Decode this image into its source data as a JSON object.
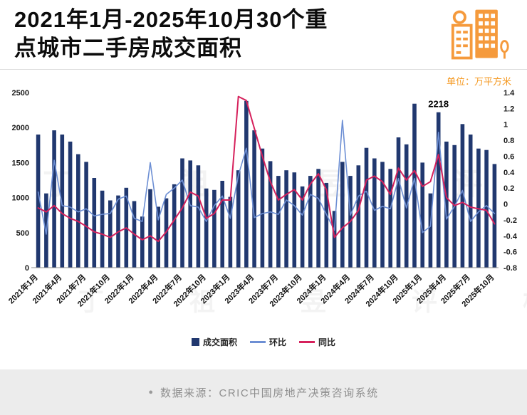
{
  "header": {
    "title": "2021年1月-2025年10月30个重\n点城市二手房成交面积",
    "unit_label": "单位：万平方米"
  },
  "chart_data": {
    "type": "bar",
    "title": "2021年1月-2025年10月30个重点城市二手房成交面积",
    "ylabel_left": "万平方米",
    "categories": [
      "2021年1月",
      "2021年2月",
      "2021年3月",
      "2021年4月",
      "2021年5月",
      "2021年6月",
      "2021年7月",
      "2021年8月",
      "2021年9月",
      "2021年10月",
      "2021年11月",
      "2021年12月",
      "2022年1月",
      "2022年2月",
      "2022年3月",
      "2022年4月",
      "2022年5月",
      "2022年6月",
      "2022年7月",
      "2022年8月",
      "2022年9月",
      "2022年10月",
      "2022年11月",
      "2022年12月",
      "2023年1月",
      "2023年2月",
      "2023年3月",
      "2023年4月",
      "2023年5月",
      "2023年6月",
      "2023年7月",
      "2023年8月",
      "2023年9月",
      "2023年10月",
      "2023年11月",
      "2023年12月",
      "2024年1月",
      "2024年2月",
      "2024年3月",
      "2024年4月",
      "2024年5月",
      "2024年6月",
      "2024年7月",
      "2024年8月",
      "2024年9月",
      "2024年10月",
      "2024年11月",
      "2024年12月",
      "2025年1月",
      "2025年2月",
      "2025年3月",
      "2025年4月",
      "2025年5月",
      "2025年6月",
      "2025年7月",
      "2025年8月",
      "2025年9月",
      "2025年10月"
    ],
    "x_tick_labels": [
      "2021年1月",
      "2021年4月",
      "2021年7月",
      "2021年10月",
      "2022年1月",
      "2022年4月",
      "2022年7月",
      "2022年10月",
      "2023年1月",
      "2023年4月",
      "2023年7月",
      "2023年10月",
      "2024年1月",
      "2024年4月",
      "2024年7月",
      "2024年10月",
      "2025年1月",
      "2025年4月",
      "2025年7月",
      "2025年10月"
    ],
    "left_axis": {
      "min": 0,
      "max": 2500,
      "ticks": [
        "0",
        "500",
        "1000",
        "1500",
        "2000",
        "2500"
      ]
    },
    "right_axis": {
      "min": -0.8,
      "max": 1.4,
      "ticks": [
        "1.4",
        "1.2",
        "1",
        "0.8",
        "0.6",
        "0.4",
        "0.2",
        "0",
        "-0.2",
        "-0.4",
        "-0.6",
        "-0.8"
      ]
    },
    "series": [
      {
        "name": "成交面积",
        "type": "bar",
        "axis": "left",
        "color": "#21386f",
        "values": [
          1900,
          1060,
          1960,
          1900,
          1800,
          1620,
          1510,
          1280,
          1100,
          960,
          1030,
          1140,
          950,
          730,
          1120,
          870,
          990,
          1190,
          1560,
          1530,
          1460,
          1130,
          1110,
          1240,
          1010,
          1390,
          2380,
          1960,
          1700,
          1520,
          1310,
          1390,
          1360,
          1160,
          1310,
          1410,
          1210,
          810,
          1510,
          1310,
          1460,
          1710,
          1560,
          1510,
          1410,
          1860,
          1760,
          2340,
          1500,
          1060,
          2218,
          1800,
          1750,
          2050,
          1900,
          1700,
          1680,
          1480
        ]
      },
      {
        "name": "环比",
        "type": "line",
        "axis": "right",
        "color": "#6d8fd4",
        "values": [
          0.15,
          -0.38,
          0.55,
          -0.02,
          -0.04,
          -0.1,
          -0.06,
          -0.15,
          -0.13,
          -0.12,
          0.06,
          0.1,
          -0.18,
          -0.22,
          0.52,
          -0.2,
          0.12,
          0.2,
          0.3,
          -0.02,
          -0.04,
          -0.22,
          -0.02,
          0.1,
          -0.18,
          0.36,
          0.7,
          -0.17,
          -0.12,
          -0.1,
          -0.13,
          0.05,
          -0.02,
          -0.14,
          0.12,
          0.07,
          -0.13,
          -0.33,
          1.05,
          -0.14,
          0.1,
          0.16,
          -0.08,
          -0.03,
          -0.06,
          0.32,
          -0.05,
          0.32,
          -0.36,
          -0.28,
          0.9,
          -0.19,
          -0.03,
          0.17,
          -0.22,
          -0.1,
          -0.02,
          -0.12
        ]
      },
      {
        "name": "同比",
        "type": "line",
        "axis": "right",
        "color": "#d6215c",
        "values": [
          -0.05,
          -0.1,
          -0.02,
          -0.12,
          -0.18,
          -0.22,
          -0.28,
          -0.35,
          -0.38,
          -0.42,
          -0.35,
          -0.3,
          -0.38,
          -0.45,
          -0.4,
          -0.47,
          -0.35,
          -0.2,
          -0.05,
          0.15,
          0.1,
          -0.18,
          -0.12,
          0.05,
          0.05,
          1.35,
          1.3,
          0.95,
          0.6,
          0.28,
          0.05,
          0.12,
          0.18,
          0.05,
          0.25,
          0.38,
          0.18,
          -0.42,
          -0.3,
          -0.22,
          -0.08,
          0.3,
          0.35,
          0.28,
          0.12,
          0.45,
          0.3,
          0.42,
          0.22,
          0.28,
          0.62,
          0.08,
          -0.02,
          0.02,
          -0.04,
          -0.06,
          -0.08,
          -0.25
        ]
      }
    ],
    "annotation": {
      "text": "2218",
      "month": "2025年3月"
    },
    "grid": "off",
    "legend_position": "bottom"
  },
  "legend": [
    {
      "label": "成交面积",
      "color": "#21386f",
      "marker": "square"
    },
    {
      "label": "环比",
      "color": "#6d8fd4",
      "marker": "line"
    },
    {
      "label": "同比",
      "color": "#d6215c",
      "marker": "line"
    }
  ],
  "footer": {
    "bullet": "●",
    "source": "数据来源：CRIC中国房地产决策咨询系统"
  },
  "watermark": "丁祖昱评楼市",
  "colors": {
    "accent_orange": "#f59a23",
    "bar_navy": "#21386f",
    "mom_blue": "#6d8fd4",
    "yoy_red": "#d6215c",
    "footer_bg": "#ececec"
  }
}
